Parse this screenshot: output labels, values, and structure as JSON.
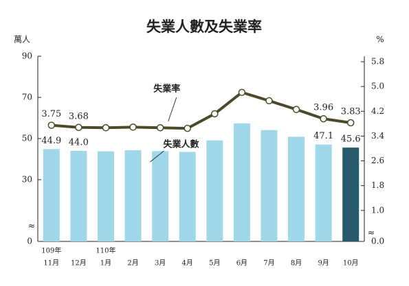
{
  "chart_data": {
    "type": "bar-line",
    "title": "失業人數及失業率",
    "y_label": "萬人",
    "y2_label": "%",
    "categories": [
      "11月",
      "12月",
      "1月",
      "2月",
      "3月",
      "4月",
      "5月",
      "6月",
      "7月",
      "8月",
      "9月",
      "10月"
    ],
    "category_groups": [
      "109年",
      null,
      "110年",
      null,
      null,
      null,
      null,
      null,
      null,
      null,
      null,
      null
    ],
    "ylim": [
      0,
      90
    ],
    "yticks": [
      0,
      30,
      50,
      70,
      90
    ],
    "y2lim": [
      0,
      5.8
    ],
    "y2ticks": [
      {
        "value": 0,
        "label": "0.0"
      },
      {
        "value": 1,
        "label": "1.0"
      },
      1.8,
      2.6,
      3.4,
      4.2,
      {
        "value": 5,
        "label": "5.0"
      },
      5.8
    ],
    "series": [
      {
        "name": "失業人數",
        "type": "bar",
        "color": "#9fd8ea",
        "label_color": "#2d6f86",
        "colors": [
          "#9fd8ea",
          "#9fd8ea",
          "#9fd8ea",
          "#9fd8ea",
          "#9fd8ea",
          "#9fd8ea",
          "#9fd8ea",
          "#9fd8ea",
          "#9fd8ea",
          "#9fd8ea",
          "#9fd8ea",
          "#235b6b"
        ],
        "values": [
          44.9,
          44.0,
          43.8,
          44.3,
          43.9,
          43.5,
          49.1,
          57.4,
          54.1,
          50.9,
          47.1,
          45.6
        ],
        "value_labels": [
          "44.9",
          "44.0",
          null,
          null,
          null,
          null,
          null,
          null,
          null,
          null,
          "47.1",
          "45.6"
        ]
      },
      {
        "name": "失業率",
        "type": "line",
        "axis": "y2",
        "color": "#4d4a26",
        "label_color": "#6b5a14",
        "values": [
          3.75,
          3.68,
          3.67,
          3.69,
          3.67,
          3.65,
          4.12,
          4.81,
          4.54,
          4.26,
          3.96,
          3.83
        ],
        "value_labels": [
          "3.75",
          "3.68",
          null,
          null,
          null,
          null,
          null,
          null,
          null,
          null,
          "3.96",
          "3.83"
        ]
      }
    ]
  }
}
